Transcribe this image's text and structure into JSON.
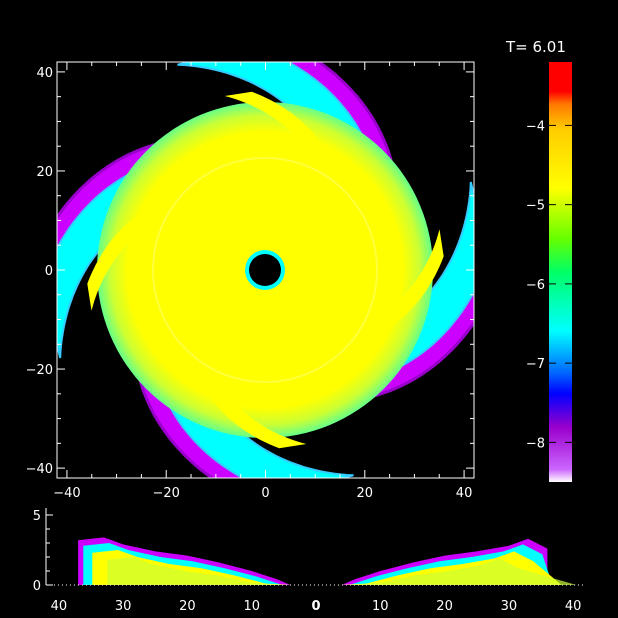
{
  "chart_data": [
    {
      "type": "heatmap",
      "panel": "top-view",
      "title": "",
      "xlabel": "",
      "ylabel": "",
      "xlim": [
        -42,
        42
      ],
      "ylim": [
        -42,
        42
      ],
      "x_ticks": [
        -40,
        -20,
        0,
        20,
        40
      ],
      "y_ticks": [
        -40,
        -20,
        0,
        20,
        40
      ],
      "x_tick_labels": [
        "−40",
        "−20",
        "0",
        "20",
        "40"
      ],
      "y_tick_labels": [
        "−40",
        "−20",
        "0",
        "20",
        "40"
      ],
      "inner_hole_radius": 3.5,
      "outer_radius": 40,
      "spiral_arms": 4,
      "dominant_color": "#ffff00"
    },
    {
      "type": "heatmap",
      "panel": "side-view",
      "title": "",
      "xlabel": "",
      "ylabel": "",
      "xlim": [
        -42,
        42
      ],
      "ylim": [
        0,
        5.5
      ],
      "x_ticks": [
        -40,
        -30,
        -20,
        -10,
        0,
        10,
        20,
        30,
        40
      ],
      "x_tick_labels": [
        "40",
        "30",
        "20",
        "10",
        "0",
        "10",
        "20",
        "30",
        "40"
      ],
      "y_ticks": [
        0,
        5
      ],
      "y_tick_labels": [
        "0",
        "5"
      ],
      "profile": [
        {
          "x": -37,
          "z": 3.2
        },
        {
          "x": -33,
          "z": 3.4
        },
        {
          "x": -30,
          "z": 2.9
        },
        {
          "x": -25,
          "z": 2.4
        },
        {
          "x": -20,
          "z": 2.1
        },
        {
          "x": -15,
          "z": 1.6
        },
        {
          "x": -10,
          "z": 1.0
        },
        {
          "x": -6,
          "z": 0.4
        },
        {
          "x": -4,
          "z": 0
        },
        {
          "x": 4,
          "z": 0
        },
        {
          "x": 6,
          "z": 0.4
        },
        {
          "x": 10,
          "z": 1.0
        },
        {
          "x": 15,
          "z": 1.6
        },
        {
          "x": 20,
          "z": 2.1
        },
        {
          "x": 25,
          "z": 2.4
        },
        {
          "x": 30,
          "z": 2.8
        },
        {
          "x": 33,
          "z": 3.3
        },
        {
          "x": 36,
          "z": 2.6
        }
      ]
    }
  ],
  "colorbar": {
    "label": "T=  6.01",
    "range": [
      -8.5,
      -3.2
    ],
    "ticks": [
      -4,
      -5,
      -6,
      -7,
      -8
    ],
    "tick_labels": [
      "−4",
      "−5",
      "−6",
      "−7",
      "−8"
    ],
    "stops": [
      "#ffffff",
      "#9900cc",
      "#0000ff",
      "#00ffff",
      "#00ff00",
      "#ffff00",
      "#ff8800",
      "#ff0000"
    ]
  },
  "colors": {
    "background": "#000000",
    "yellow": "#ffff00",
    "cyan": "#00ffff",
    "magenta": "#cc00ff",
    "blue": "#0000ff",
    "white": "#ffffff"
  }
}
